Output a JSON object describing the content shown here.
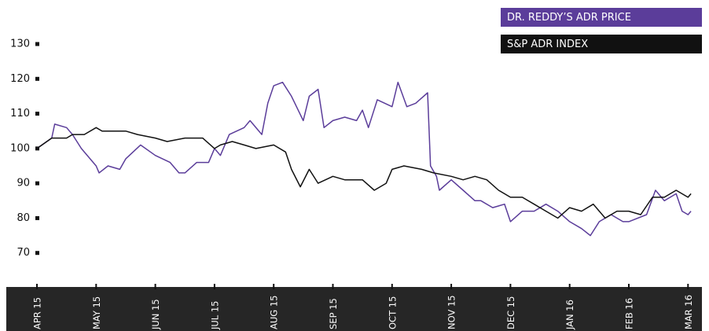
{
  "chart_data": {
    "type": "line",
    "xlim": [
      0,
      11.1
    ],
    "xticks": [
      {
        "value": 0,
        "label": "APR 15"
      },
      {
        "value": 1,
        "label": "MAY 15"
      },
      {
        "value": 2,
        "label": "JUN 15"
      },
      {
        "value": 3,
        "label": "JUL 15"
      },
      {
        "value": 4,
        "label": "AUG 15"
      },
      {
        "value": 5,
        "label": "SEP 15"
      },
      {
        "value": 6,
        "label": "OCT 15"
      },
      {
        "value": 7,
        "label": "NOV 15"
      },
      {
        "value": 8,
        "label": "DEC 15"
      },
      {
        "value": 9,
        "label": "JAN 16"
      },
      {
        "value": 10,
        "label": "FEB 16"
      },
      {
        "value": 11,
        "label": "MAR 16"
      }
    ],
    "ylim": [
      60,
      130
    ],
    "yticks": [
      70,
      80,
      90,
      100,
      110,
      120,
      130
    ],
    "legend": "top-right",
    "series": [
      {
        "name": "DR. REDDY’S ADR PRICE",
        "color": "#5b3d9a",
        "x": [
          0,
          0.25,
          0.3,
          0.5,
          0.6,
          0.75,
          1.0,
          1.05,
          1.2,
          1.4,
          1.5,
          1.75,
          2.0,
          2.25,
          2.4,
          2.5,
          2.7,
          2.9,
          3.0,
          3.1,
          3.25,
          3.5,
          3.6,
          3.8,
          3.9,
          4.0,
          4.15,
          4.3,
          4.5,
          4.6,
          4.75,
          4.85,
          5.0,
          5.2,
          5.4,
          5.5,
          5.6,
          5.75,
          6.0,
          6.1,
          6.25,
          6.4,
          6.6,
          6.65,
          6.75,
          6.8,
          7.0,
          7.2,
          7.4,
          7.5,
          7.7,
          7.9,
          8.0,
          8.2,
          8.4,
          8.6,
          8.8,
          9.0,
          9.2,
          9.35,
          9.5,
          9.7,
          9.9,
          10.0,
          10.3,
          10.45,
          10.6,
          10.8,
          10.9,
          11.0,
          11.05
        ],
        "values": [
          100,
          103,
          107,
          106,
          104,
          100,
          95,
          93,
          95,
          94,
          97,
          101,
          98,
          96,
          93,
          93,
          96,
          96,
          100,
          98,
          104,
          106,
          108,
          104,
          113,
          118,
          119,
          115,
          108,
          115,
          117,
          106,
          108,
          109,
          108,
          111,
          106,
          114,
          112,
          119,
          112,
          113,
          116,
          95,
          92,
          88,
          91,
          88,
          85,
          85,
          83,
          84,
          79,
          82,
          82,
          84,
          82,
          79,
          77,
          75,
          79,
          81,
          79,
          79,
          81,
          88,
          85,
          87,
          82,
          81,
          82
        ]
      },
      {
        "name": "S&P ADR INDEX",
        "color": "#111111",
        "x": [
          0,
          0.25,
          0.5,
          0.6,
          0.8,
          1.0,
          1.1,
          1.3,
          1.5,
          1.7,
          2.0,
          2.2,
          2.5,
          2.8,
          3.0,
          3.1,
          3.3,
          3.5,
          3.7,
          4.0,
          4.2,
          4.3,
          4.45,
          4.6,
          4.75,
          5.0,
          5.2,
          5.5,
          5.7,
          5.9,
          6.0,
          6.2,
          6.5,
          6.7,
          7.0,
          7.2,
          7.4,
          7.6,
          7.8,
          8.0,
          8.2,
          8.4,
          8.6,
          8.8,
          9.0,
          9.2,
          9.4,
          9.6,
          9.8,
          10.0,
          10.2,
          10.4,
          10.6,
          10.8,
          11.0,
          11.05
        ],
        "values": [
          100,
          103,
          103,
          104,
          104,
          106,
          105,
          105,
          105,
          104,
          103,
          102,
          103,
          103,
          100,
          101,
          102,
          101,
          100,
          101,
          99,
          94,
          89,
          94,
          90,
          92,
          91,
          91,
          88,
          90,
          94,
          95,
          94,
          93,
          92,
          91,
          92,
          91,
          88,
          86,
          86,
          84,
          82,
          80,
          83,
          82,
          84,
          80,
          82,
          82,
          81,
          86,
          86,
          88,
          86,
          87
        ]
      }
    ]
  }
}
